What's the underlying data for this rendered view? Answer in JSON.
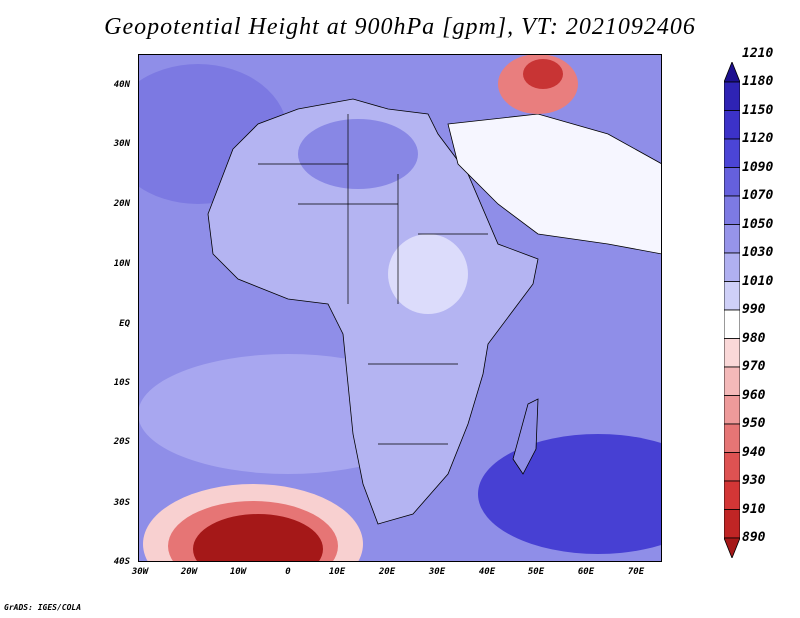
{
  "title": "Geopotential Height at 900hPa [gpm], VT: 2021092406",
  "credit": "GrADS: IGES/COLA",
  "lat_labels": [
    "40N",
    "30N",
    "20N",
    "10N",
    "EQ",
    "10S",
    "20S",
    "30S",
    "40S"
  ],
  "lon_labels": [
    "30W",
    "20W",
    "10W",
    "0",
    "10E",
    "20E",
    "30E",
    "40E",
    "50E",
    "60E",
    "70E"
  ],
  "colorbar": {
    "levels": [
      "1210",
      "1180",
      "1150",
      "1120",
      "1090",
      "1070",
      "1050",
      "1030",
      "1010",
      "990",
      "980",
      "970",
      "960",
      "950",
      "940",
      "930",
      "910",
      "890"
    ],
    "colors": [
      "#1d108f",
      "#2e23b4",
      "#3c32c8",
      "#4b45d6",
      "#6560dd",
      "#7d7ae3",
      "#9694ea",
      "#b0b0f1",
      "#cfd0f8",
      "#ffffff",
      "#fad8d8",
      "#f4b9b9",
      "#ee9a9a",
      "#e67575",
      "#de5252",
      "#d33636",
      "#c02525",
      "#a51818"
    ]
  },
  "colors": {
    "ocean": "#8f8ee8",
    "land": "#b0b0f2",
    "low": "#a81a1a",
    "high": "#3a34c8"
  }
}
